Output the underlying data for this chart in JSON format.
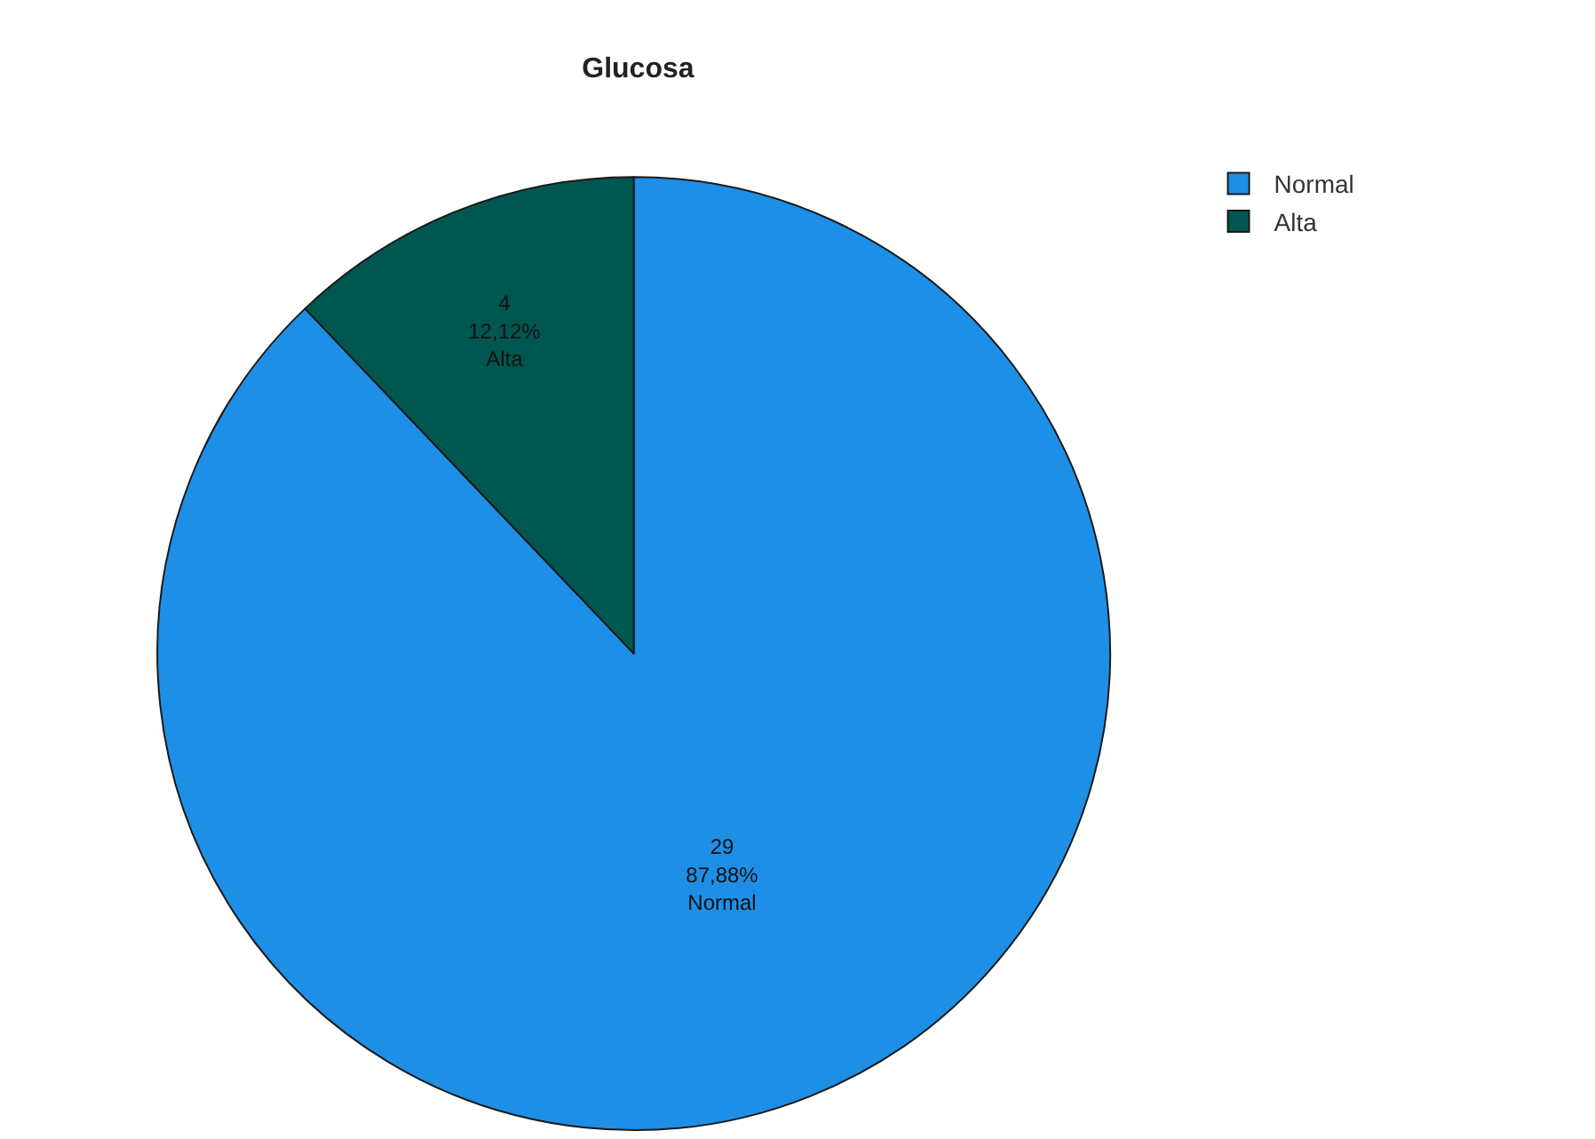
{
  "chart_data": {
    "type": "pie",
    "title": "Glucosa",
    "categories": [
      "Normal",
      "Alta"
    ],
    "values": [
      29,
      4
    ],
    "colors": [
      "#1e8fe6",
      "#00574f"
    ],
    "value_labels": [
      "29\n87,88%\nNormal",
      "4\n12,12%\nAlta"
    ],
    "legend": "top right"
  }
}
